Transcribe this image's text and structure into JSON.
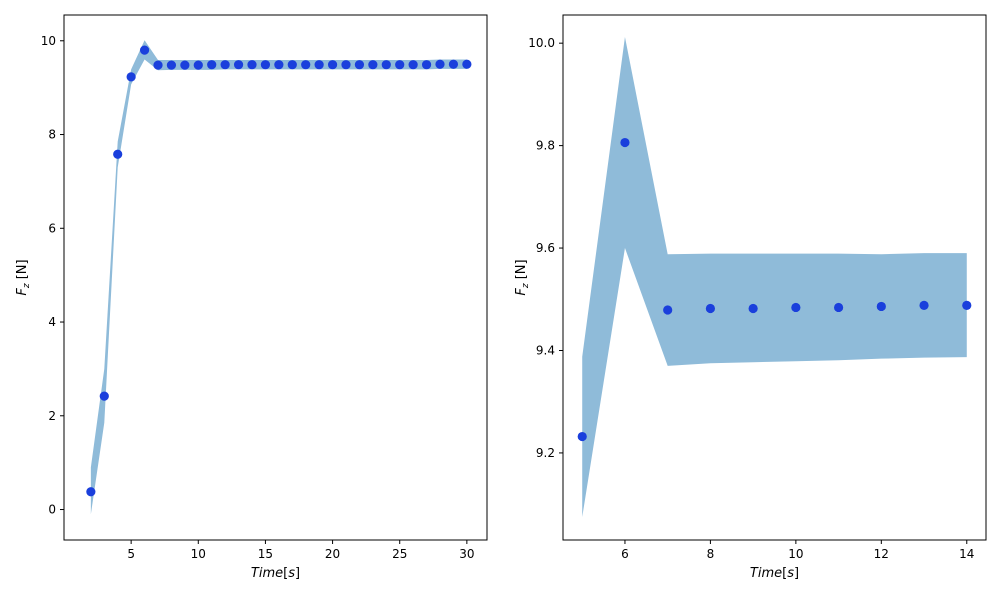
{
  "chart_data": [
    {
      "type": "scatter",
      "title": "",
      "xlabel": "Time[s]",
      "ylabel": "F_z [N]",
      "xlim": [
        0.0,
        31.5
      ],
      "ylim": [
        -0.65,
        10.55
      ],
      "xticks": [
        5,
        10,
        15,
        20,
        25,
        30
      ],
      "yticks": [
        0,
        2,
        4,
        6,
        8,
        10
      ],
      "xtick_labels": [
        "5",
        "10",
        "15",
        "20",
        "25",
        "30"
      ],
      "ytick_labels": [
        "0",
        "2",
        "4",
        "6",
        "8",
        "10"
      ],
      "grid": false,
      "legend": "none",
      "marker_color": "#1a3fdc",
      "band_color": "#8fbbd9",
      "series": [
        {
          "x": [
            2,
            3,
            4,
            5,
            6,
            7,
            8,
            9,
            10,
            11,
            12,
            13,
            14,
            15,
            16,
            17,
            18,
            19,
            20,
            21,
            22,
            23,
            24,
            25,
            26,
            27,
            28,
            29,
            30
          ],
          "values": [
            0.38,
            2.42,
            7.58,
            9.23,
            9.8,
            9.48,
            9.48,
            9.48,
            9.48,
            9.49,
            9.49,
            9.49,
            9.49,
            9.49,
            9.49,
            9.49,
            9.49,
            9.49,
            9.49,
            9.49,
            9.49,
            9.49,
            9.49,
            9.49,
            9.49,
            9.49,
            9.5,
            9.5,
            9.5
          ],
          "band_lower": [
            -0.1,
            1.85,
            7.3,
            9.07,
            9.6,
            9.37,
            9.38,
            9.38,
            9.38,
            9.38,
            9.39,
            9.39,
            9.39,
            9.39,
            9.39,
            9.39,
            9.39,
            9.39,
            9.39,
            9.39,
            9.39,
            9.39,
            9.39,
            9.39,
            9.39,
            9.39,
            9.4,
            9.4,
            9.4
          ],
          "band_upper": [
            0.9,
            3.0,
            7.85,
            9.39,
            10.01,
            9.59,
            9.59,
            9.59,
            9.59,
            9.59,
            9.59,
            9.59,
            9.59,
            9.59,
            9.59,
            9.59,
            9.59,
            9.59,
            9.59,
            9.59,
            9.59,
            9.59,
            9.59,
            9.59,
            9.59,
            9.59,
            9.6,
            9.6,
            9.6
          ]
        }
      ]
    },
    {
      "type": "scatter",
      "title": "",
      "xlabel": "Time[s]",
      "ylabel": "F_z [N]",
      "xlim": [
        4.55,
        14.45
      ],
      "ylim": [
        9.03,
        10.055
      ],
      "xticks": [
        6,
        8,
        10,
        12,
        14
      ],
      "yticks": [
        9.2,
        9.4,
        9.6,
        9.8,
        10.0
      ],
      "xtick_labels": [
        "6",
        "8",
        "10",
        "12",
        "14"
      ],
      "ytick_labels": [
        "9.2",
        "9.4",
        "9.6",
        "9.8",
        "10.0"
      ],
      "grid": false,
      "legend": "none",
      "marker_color": "#1a3fdc",
      "band_color": "#8fbbd9",
      "series": [
        {
          "x": [
            5,
            6,
            7,
            8,
            9,
            10,
            11,
            12,
            13,
            14
          ],
          "values": [
            9.232,
            9.806,
            9.479,
            9.482,
            9.482,
            9.484,
            9.484,
            9.486,
            9.488,
            9.488
          ],
          "band_lower": [
            9.075,
            9.6,
            9.37,
            9.375,
            9.377,
            9.379,
            9.381,
            9.384,
            9.386,
            9.387
          ],
          "band_upper": [
            9.388,
            10.012,
            9.588,
            9.589,
            9.589,
            9.589,
            9.589,
            9.588,
            9.59,
            9.59
          ]
        }
      ]
    }
  ]
}
